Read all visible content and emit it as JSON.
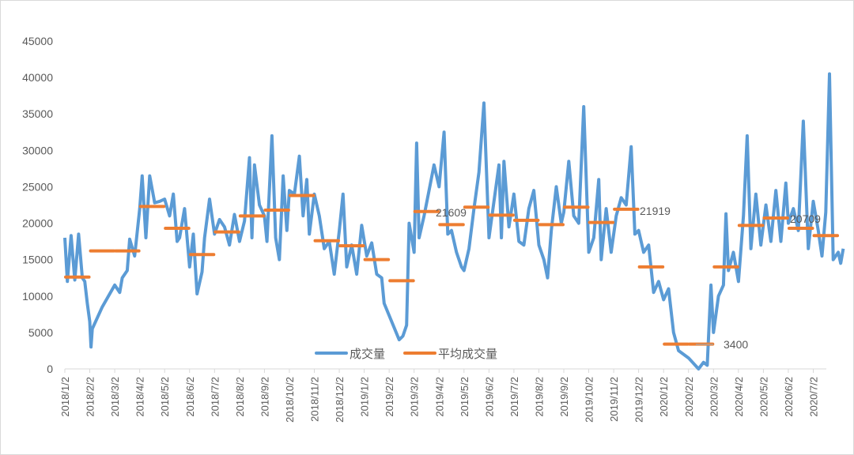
{
  "chart_data": {
    "type": "line",
    "title": "",
    "xlabel": "",
    "ylabel": "",
    "ylim": [
      0,
      45000
    ],
    "yticks": [
      0,
      5000,
      10000,
      15000,
      20000,
      25000,
      30000,
      35000,
      40000,
      45000
    ],
    "grid": false,
    "legend_position": "inside-bottom-center",
    "x_tick_labels": [
      "2018/1/2",
      "2018/2/2",
      "2018/3/2",
      "2018/4/2",
      "2018/5/2",
      "2018/6/2",
      "2018/7/2",
      "2018/8/2",
      "2018/9/2",
      "2018/10/2",
      "2018/11/2",
      "2018/12/2",
      "2019/1/2",
      "2019/2/2",
      "2019/3/2",
      "2019/4/2",
      "2019/5/2",
      "2019/6/2",
      "2019/7/2",
      "2019/8/2",
      "2019/9/2",
      "2019/10/2",
      "2019/11/2",
      "2019/12/2",
      "2020/1/2",
      "2020/2/2",
      "2020/3/2",
      "2020/4/2",
      "2020/5/2",
      "2020/6/2",
      "2020/7/2"
    ],
    "series": [
      {
        "name": "成交量",
        "color": "#5B9BD5",
        "type": "line",
        "note": "daily volume, approximate key points (month index, value)",
        "points": [
          [
            0,
            18000
          ],
          [
            0.1,
            12000
          ],
          [
            0.25,
            18300
          ],
          [
            0.4,
            12200
          ],
          [
            0.55,
            18500
          ],
          [
            0.7,
            12500
          ],
          [
            0.8,
            12000
          ],
          [
            0.9,
            9000
          ],
          [
            1.0,
            6500
          ],
          [
            1.05,
            3000
          ],
          [
            1.1,
            5500
          ],
          [
            1.5,
            8500
          ],
          [
            2.0,
            11500
          ],
          [
            2.2,
            10500
          ],
          [
            2.3,
            12500
          ],
          [
            2.5,
            13500
          ],
          [
            2.6,
            17800
          ],
          [
            2.8,
            15500
          ],
          [
            3.0,
            22000
          ],
          [
            3.1,
            26500
          ],
          [
            3.25,
            18000
          ],
          [
            3.4,
            26500
          ],
          [
            3.6,
            22800
          ],
          [
            3.8,
            23000
          ],
          [
            4.0,
            23300
          ],
          [
            4.2,
            21000
          ],
          [
            4.35,
            24000
          ],
          [
            4.5,
            17500
          ],
          [
            4.6,
            18000
          ],
          [
            4.8,
            22000
          ],
          [
            5.0,
            14000
          ],
          [
            5.15,
            18500
          ],
          [
            5.3,
            10300
          ],
          [
            5.5,
            13300
          ],
          [
            5.6,
            18000
          ],
          [
            5.8,
            23300
          ],
          [
            6.0,
            18500
          ],
          [
            6.2,
            20500
          ],
          [
            6.4,
            19500
          ],
          [
            6.6,
            17000
          ],
          [
            6.8,
            21200
          ],
          [
            7.0,
            17500
          ],
          [
            7.2,
            20300
          ],
          [
            7.4,
            29000
          ],
          [
            7.5,
            18000
          ],
          [
            7.6,
            28000
          ],
          [
            7.8,
            22500
          ],
          [
            8.0,
            21000
          ],
          [
            8.1,
            17500
          ],
          [
            8.3,
            32000
          ],
          [
            8.45,
            18000
          ],
          [
            8.6,
            15000
          ],
          [
            8.75,
            26500
          ],
          [
            8.9,
            19000
          ],
          [
            9.0,
            24500
          ],
          [
            9.2,
            24000
          ],
          [
            9.4,
            29200
          ],
          [
            9.55,
            21000
          ],
          [
            9.7,
            26000
          ],
          [
            9.8,
            18500
          ],
          [
            10.0,
            24000
          ],
          [
            10.2,
            21000
          ],
          [
            10.4,
            16500
          ],
          [
            10.6,
            17500
          ],
          [
            10.8,
            13000
          ],
          [
            11.0,
            19000
          ],
          [
            11.15,
            24000
          ],
          [
            11.3,
            14000
          ],
          [
            11.5,
            17000
          ],
          [
            11.7,
            13000
          ],
          [
            11.9,
            19700
          ],
          [
            12.1,
            15500
          ],
          [
            12.3,
            17300
          ],
          [
            12.5,
            13000
          ],
          [
            12.7,
            12500
          ],
          [
            12.8,
            9000
          ],
          [
            13.4,
            4000
          ],
          [
            13.55,
            4500
          ],
          [
            13.7,
            6000
          ],
          [
            13.8,
            20000
          ],
          [
            14.0,
            16000
          ],
          [
            14.1,
            31000
          ],
          [
            14.2,
            18000
          ],
          [
            14.4,
            21000
          ],
          [
            14.6,
            24500
          ],
          [
            14.8,
            28000
          ],
          [
            15.0,
            25000
          ],
          [
            15.2,
            32500
          ],
          [
            15.35,
            18500
          ],
          [
            15.5,
            19000
          ],
          [
            15.7,
            16000
          ],
          [
            15.9,
            14000
          ],
          [
            16.0,
            13500
          ],
          [
            16.2,
            16500
          ],
          [
            16.4,
            22000
          ],
          [
            16.6,
            27000
          ],
          [
            16.8,
            36500
          ],
          [
            17.0,
            18000
          ],
          [
            17.2,
            23000
          ],
          [
            17.4,
            28000
          ],
          [
            17.5,
            18000
          ],
          [
            17.6,
            28500
          ],
          [
            17.8,
            19500
          ],
          [
            18.0,
            24000
          ],
          [
            18.2,
            17500
          ],
          [
            18.4,
            17000
          ],
          [
            18.6,
            22000
          ],
          [
            18.8,
            24500
          ],
          [
            19.0,
            17000
          ],
          [
            19.2,
            15000
          ],
          [
            19.35,
            12500
          ],
          [
            19.5,
            19000
          ],
          [
            19.7,
            25000
          ],
          [
            19.9,
            20000
          ],
          [
            20.0,
            21500
          ],
          [
            20.2,
            28500
          ],
          [
            20.4,
            21000
          ],
          [
            20.6,
            20000
          ],
          [
            20.8,
            36000
          ],
          [
            21.0,
            16000
          ],
          [
            21.2,
            18000
          ],
          [
            21.4,
            26000
          ],
          [
            21.5,
            15000
          ],
          [
            21.7,
            22000
          ],
          [
            21.9,
            16000
          ],
          [
            22.1,
            21000
          ],
          [
            22.3,
            23500
          ],
          [
            22.5,
            22500
          ],
          [
            22.7,
            30500
          ],
          [
            22.85,
            18500
          ],
          [
            23.0,
            19000
          ],
          [
            23.2,
            16000
          ],
          [
            23.4,
            17000
          ],
          [
            23.6,
            10500
          ],
          [
            23.8,
            12000
          ],
          [
            24.0,
            9500
          ],
          [
            24.2,
            11000
          ],
          [
            24.4,
            5000
          ],
          [
            24.6,
            2500
          ],
          [
            25.0,
            1500
          ],
          [
            25.4,
            0
          ],
          [
            25.6,
            900
          ],
          [
            25.75,
            500
          ],
          [
            25.9,
            11500
          ],
          [
            26.0,
            5000
          ],
          [
            26.2,
            10000
          ],
          [
            26.4,
            11500
          ],
          [
            26.5,
            21300
          ],
          [
            26.6,
            13500
          ],
          [
            26.8,
            16000
          ],
          [
            27.0,
            12000
          ],
          [
            27.2,
            21000
          ],
          [
            27.35,
            32000
          ],
          [
            27.5,
            16500
          ],
          [
            27.7,
            24000
          ],
          [
            27.9,
            17000
          ],
          [
            28.1,
            22500
          ],
          [
            28.3,
            17500
          ],
          [
            28.5,
            24500
          ],
          [
            28.7,
            17500
          ],
          [
            28.9,
            25500
          ],
          [
            29.0,
            20000
          ],
          [
            29.2,
            22000
          ],
          [
            29.4,
            19000
          ],
          [
            29.6,
            34000
          ],
          [
            29.8,
            16500
          ],
          [
            30.0,
            23000
          ],
          [
            30.2,
            19000
          ],
          [
            30.35,
            15500
          ],
          [
            30.5,
            21500
          ],
          [
            30.65,
            40500
          ],
          [
            30.8,
            15000
          ],
          [
            31.0,
            16000
          ],
          [
            31.1,
            14500
          ],
          [
            31.2,
            16500
          ]
        ]
      },
      {
        "name": "平均成交量",
        "color": "#ED7D31",
        "type": "step-segments",
        "note": "monthly average, approximate",
        "segments": [
          {
            "month": "2018/1",
            "value": 12600
          },
          {
            "month": "2018/2",
            "value": 16200
          },
          {
            "month": "2018/3",
            "value": 16200
          },
          {
            "month": "2018/4",
            "value": 22300
          },
          {
            "month": "2018/5",
            "value": 19300
          },
          {
            "month": "2018/6",
            "value": 15700
          },
          {
            "month": "2018/7",
            "value": 18800
          },
          {
            "month": "2018/8",
            "value": 21000
          },
          {
            "month": "2018/9",
            "value": 21800
          },
          {
            "month": "2018/10",
            "value": 23800
          },
          {
            "month": "2018/11",
            "value": 17600
          },
          {
            "month": "2018/12",
            "value": 16900
          },
          {
            "month": "2019/1",
            "value": 15000
          },
          {
            "month": "2019/2",
            "value": 12100
          },
          {
            "month": "2019/3",
            "value": 21609
          },
          {
            "month": "2019/4",
            "value": 19800
          },
          {
            "month": "2019/5",
            "value": 22200
          },
          {
            "month": "2019/6",
            "value": 21100
          },
          {
            "month": "2019/7",
            "value": 20400
          },
          {
            "month": "2019/8",
            "value": 19800
          },
          {
            "month": "2019/9",
            "value": 22200
          },
          {
            "month": "2019/10",
            "value": 20100
          },
          {
            "month": "2019/11",
            "value": 21919
          },
          {
            "month": "2019/12",
            "value": 14000
          },
          {
            "month": "2020/1",
            "value": 3400
          },
          {
            "month": "2020/2",
            "value": 3400
          },
          {
            "month": "2020/3",
            "value": 14000
          },
          {
            "month": "2020/4",
            "value": 19700
          },
          {
            "month": "2020/5",
            "value": 20709
          },
          {
            "month": "2020/6",
            "value": 19300
          },
          {
            "month": "2020/7",
            "value": 18300
          }
        ]
      }
    ],
    "annotations": [
      {
        "text": "21609",
        "series": "平均成交量",
        "month": "2019/3"
      },
      {
        "text": "21919",
        "series": "平均成交量",
        "month": "2019/11"
      },
      {
        "text": "3400",
        "series": "平均成交量",
        "month": "2020/1-2020/2"
      },
      {
        "text": "20709",
        "series": "平均成交量",
        "month": "2020/5"
      }
    ]
  },
  "legend": {
    "items": [
      {
        "label": "成交量",
        "color": "#5B9BD5"
      },
      {
        "label": "平均成交量",
        "color": "#ED7D31"
      }
    ]
  },
  "labels": {
    "l1": "21609",
    "l2": "21919",
    "l3": "3400",
    "l4": "20709"
  }
}
